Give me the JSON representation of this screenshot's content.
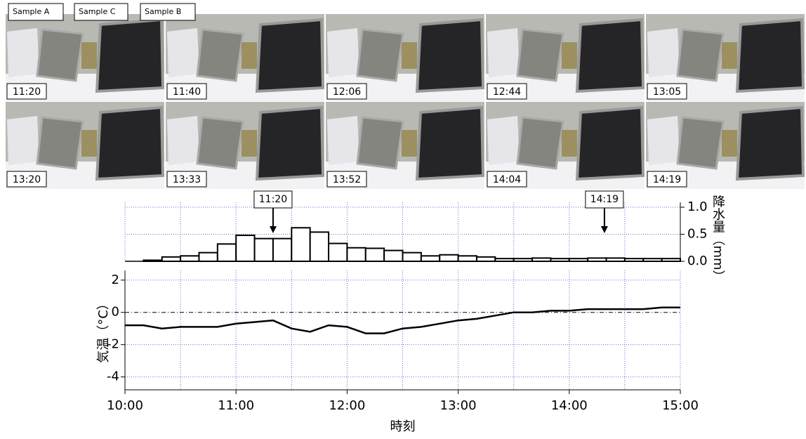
{
  "sample_labels": [
    "Sample A",
    "Sample C",
    "Sample B"
  ],
  "photos": [
    {
      "time": "11:20"
    },
    {
      "time": "11:40"
    },
    {
      "time": "12:06"
    },
    {
      "time": "12:44"
    },
    {
      "time": "13:05"
    },
    {
      "time": "13:20"
    },
    {
      "time": "13:33"
    },
    {
      "time": "13:52"
    },
    {
      "time": "14:04"
    },
    {
      "time": "14:19"
    }
  ],
  "chart_data": [
    {
      "type": "histogram",
      "y_label": "降水量（mm）",
      "bins": [
        600,
        610,
        620,
        630,
        640,
        650,
        660,
        670,
        680,
        690,
        700,
        710,
        720,
        730,
        740,
        750,
        760,
        770,
        780,
        790,
        800,
        810,
        820,
        830,
        840,
        850,
        860,
        870,
        880,
        890,
        900
      ],
      "values": [
        0,
        0.02,
        0.08,
        0.1,
        0.16,
        0.32,
        0.48,
        0.42,
        0.42,
        0.62,
        0.54,
        0.33,
        0.25,
        0.24,
        0.2,
        0.16,
        0.1,
        0.12,
        0.1,
        0.08,
        0.05,
        0.05,
        0.06,
        0.05,
        0.05,
        0.06,
        0.06,
        0.05,
        0.05,
        0.05
      ],
      "color": "#ffffff",
      "xlim": [
        600,
        900
      ],
      "ylim": [
        0,
        1
      ],
      "yticks": [
        {
          "value": 0,
          "label": "0.0"
        },
        {
          "value": 0.5,
          "label": "0.5"
        },
        {
          "value": 1,
          "label": "1.0"
        }
      ],
      "annotations": [
        {
          "x": 680,
          "label": "11:20"
        },
        {
          "x": 859,
          "label": "14:19"
        }
      ],
      "grid": true
    },
    {
      "type": "line",
      "y_label": "気温（°C）",
      "x_label": "時刻",
      "x": [
        600,
        610,
        620,
        630,
        640,
        650,
        660,
        670,
        680,
        690,
        700,
        710,
        720,
        730,
        740,
        750,
        760,
        770,
        780,
        790,
        800,
        810,
        820,
        830,
        840,
        850,
        860,
        870,
        880,
        890,
        900
      ],
      "values": [
        -0.8,
        -0.8,
        -1.0,
        -0.9,
        -0.9,
        -0.9,
        -0.7,
        -0.6,
        -0.5,
        -1.0,
        -1.2,
        -0.8,
        -0.9,
        -1.3,
        -1.3,
        -1.0,
        -0.9,
        -0.7,
        -0.5,
        -0.4,
        -0.2,
        0.0,
        0.0,
        0.1,
        0.1,
        0.2,
        0.2,
        0.2,
        0.2,
        0.3,
        0.3
      ],
      "color": "#000000",
      "xlim": [
        600,
        900
      ],
      "ylim": [
        -4.8,
        2.6
      ],
      "xticks": [
        {
          "value": 600,
          "label": "10:00"
        },
        {
          "value": 660,
          "label": "11:00"
        },
        {
          "value": 720,
          "label": "12:00"
        },
        {
          "value": 780,
          "label": "13:00"
        },
        {
          "value": 840,
          "label": "14:00"
        },
        {
          "value": 900,
          "label": "15:00"
        }
      ],
      "xminor": [
        630,
        690,
        750,
        810,
        870
      ],
      "yticks": [
        -4,
        -2,
        0,
        2
      ],
      "grid": true
    }
  ]
}
